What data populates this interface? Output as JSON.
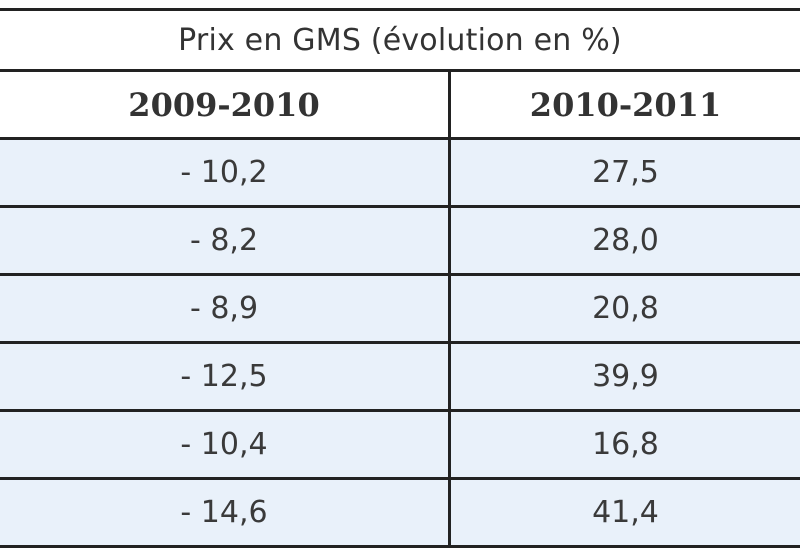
{
  "table": {
    "title": "Prix en GMS (évolution en %)",
    "headers": [
      "2009-2010",
      "2010-2011"
    ],
    "rows": [
      [
        "- 10,2",
        "27,5"
      ],
      [
        "- 8,2",
        "28,0"
      ],
      [
        "- 8,9",
        "20,8"
      ],
      [
        "- 12,5",
        "39,9"
      ],
      [
        "- 10,4",
        "16,8"
      ],
      [
        "- 14,6",
        "41,4"
      ]
    ]
  },
  "colors": {
    "row_background": "#e9f1fa",
    "border": "#222222",
    "text": "#333333"
  }
}
